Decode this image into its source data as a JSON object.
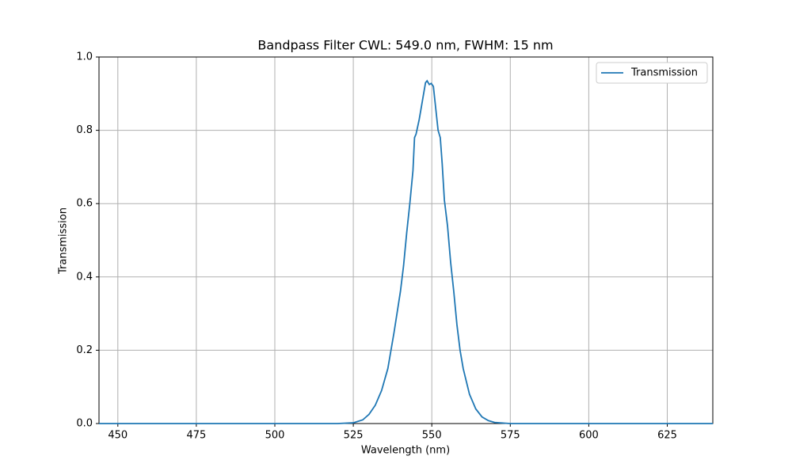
{
  "chart_data": {
    "type": "line",
    "title": "Bandpass Filter CWL: 549.0 nm, FWHM: 15 nm",
    "xlabel": "Wavelength (nm)",
    "ylabel": "Transmission",
    "x": [
      444,
      520,
      525,
      528,
      530,
      532,
      534,
      536,
      538,
      540,
      541,
      542,
      543,
      544,
      544.5,
      545,
      546,
      547,
      548,
      548.5,
      549.2,
      549.8,
      550.5,
      551,
      552,
      552.7,
      553.3,
      554,
      555,
      556,
      557,
      558,
      559,
      560,
      562,
      564,
      566,
      568,
      570,
      575,
      639.5
    ],
    "series": [
      {
        "name": "Transmission",
        "color": "#1f77b4",
        "values": [
          0,
          0,
          0.002,
          0.01,
          0.025,
          0.05,
          0.09,
          0.15,
          0.25,
          0.36,
          0.43,
          0.52,
          0.6,
          0.69,
          0.78,
          0.79,
          0.83,
          0.88,
          0.93,
          0.935,
          0.925,
          0.928,
          0.92,
          0.88,
          0.8,
          0.78,
          0.71,
          0.61,
          0.54,
          0.44,
          0.36,
          0.27,
          0.2,
          0.15,
          0.08,
          0.04,
          0.018,
          0.008,
          0.003,
          0,
          0
        ]
      }
    ],
    "xlim": [
      444,
      639.5
    ],
    "ylim": [
      0,
      1
    ],
    "xticks": [
      450,
      475,
      500,
      525,
      550,
      575,
      600,
      625
    ],
    "yticks": [
      {
        "value": 0,
        "label": "0.0"
      },
      0.2,
      0.4,
      0.6,
      0.8,
      {
        "value": 1,
        "label": "1.0"
      }
    ],
    "grid": true,
    "legend": "upper right"
  }
}
